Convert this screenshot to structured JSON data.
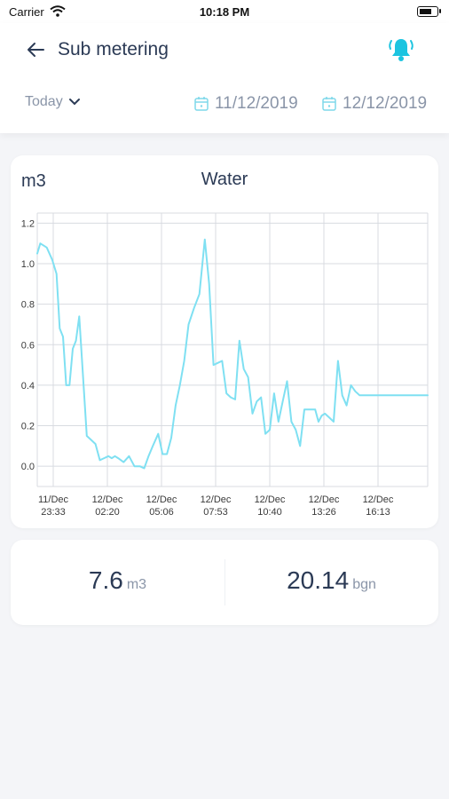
{
  "status_bar": {
    "carrier": "Carrier",
    "time": "10:18 PM",
    "battery_level": 0.8
  },
  "header": {
    "title": "Sub metering"
  },
  "filters": {
    "range": "Today",
    "date_from": "11/12/2019",
    "date_to": "12/12/2019"
  },
  "chart_data": {
    "type": "line",
    "title": "Water",
    "ylabel": "m3",
    "ylim": [
      -0.1,
      1.25
    ],
    "y_ticks": [
      "0.0",
      "0.2",
      "0.4",
      "0.6",
      "0.8",
      "1.0",
      "1.2"
    ],
    "x_ticks": [
      {
        "date": "11/Dec",
        "time": "23:33"
      },
      {
        "date": "12/Dec",
        "time": "02:20"
      },
      {
        "date": "12/Dec",
        "time": "05:06"
      },
      {
        "date": "12/Dec",
        "time": "07:53"
      },
      {
        "date": "12/Dec",
        "time": "10:40"
      },
      {
        "date": "12/Dec",
        "time": "13:26"
      },
      {
        "date": "12/Dec",
        "time": "16:13"
      }
    ],
    "color": "#7fe0f2",
    "grid": true,
    "series": [
      {
        "x": [
          -0.36,
          -0.24,
          -0.12,
          -0.02,
          0.06,
          0.12,
          0.18,
          0.24,
          0.3,
          0.36,
          0.42,
          0.48,
          0.56,
          0.62,
          0.7,
          0.78,
          0.86,
          0.94,
          1.02,
          1.08,
          1.14,
          1.2,
          1.3,
          1.4,
          1.5,
          1.6,
          1.68,
          1.76,
          1.84,
          1.94,
          2.02,
          2.1,
          2.18,
          2.26,
          2.34,
          2.42,
          2.5,
          2.6,
          2.7,
          2.8,
          2.88,
          2.96,
          3.04,
          3.12,
          3.2,
          3.28,
          3.36,
          3.44,
          3.52,
          3.6,
          3.68,
          3.76,
          3.84,
          3.92,
          4.0,
          4.08,
          4.16,
          4.24,
          4.32,
          4.4,
          4.48,
          4.56,
          4.64,
          4.7,
          4.78,
          4.84,
          4.9,
          4.96,
          5.02,
          5.1,
          5.18,
          5.26,
          5.34,
          5.42,
          5.5,
          5.58,
          5.66,
          5.74,
          5.82,
          5.9,
          5.98,
          6.06,
          6.14,
          6.22,
          6.3,
          6.38,
          6.44,
          6.5,
          6.56,
          6.62,
          6.68,
          6.74,
          6.8,
          6.86,
          6.92,
          6.98,
          7.04
        ],
        "y": [
          1.05,
          1.1,
          1.08,
          1.02,
          0.95,
          0.68,
          0.64,
          0.4,
          0.4,
          0.58,
          0.62,
          0.74,
          0.4,
          0.15,
          0.13,
          0.11,
          0.03,
          0.04,
          0.05,
          0.04,
          0.05,
          0.04,
          0.02,
          0.05,
          0.0,
          0.0,
          -0.01,
          0.05,
          0.1,
          0.16,
          0.06,
          0.06,
          0.14,
          0.3,
          0.4,
          0.52,
          0.7,
          0.78,
          0.85,
          1.12,
          0.9,
          0.5,
          0.51,
          0.52,
          0.36,
          0.34,
          0.33,
          0.62,
          0.48,
          0.44,
          0.26,
          0.32,
          0.34,
          0.16,
          0.18,
          0.36,
          0.22,
          0.32,
          0.42,
          0.22,
          0.18,
          0.1,
          0.28,
          0.28,
          0.28,
          0.28,
          0.22,
          0.25,
          0.26,
          0.24,
          0.22,
          0.52,
          0.35,
          0.3,
          0.4,
          0.37,
          0.35,
          0.35,
          0.35,
          0.35,
          0.35,
          0.35,
          0.35,
          0.35,
          0.35,
          0.35,
          0.35,
          0.35,
          0.35,
          0.35,
          0.35,
          0.35,
          0.35,
          0.35,
          0.35,
          0.35,
          0.35
        ]
      }
    ]
  },
  "totals": {
    "volume_value": "7.6",
    "volume_unit": "m3",
    "cost_value": "20.14",
    "cost_unit": "bgn"
  }
}
